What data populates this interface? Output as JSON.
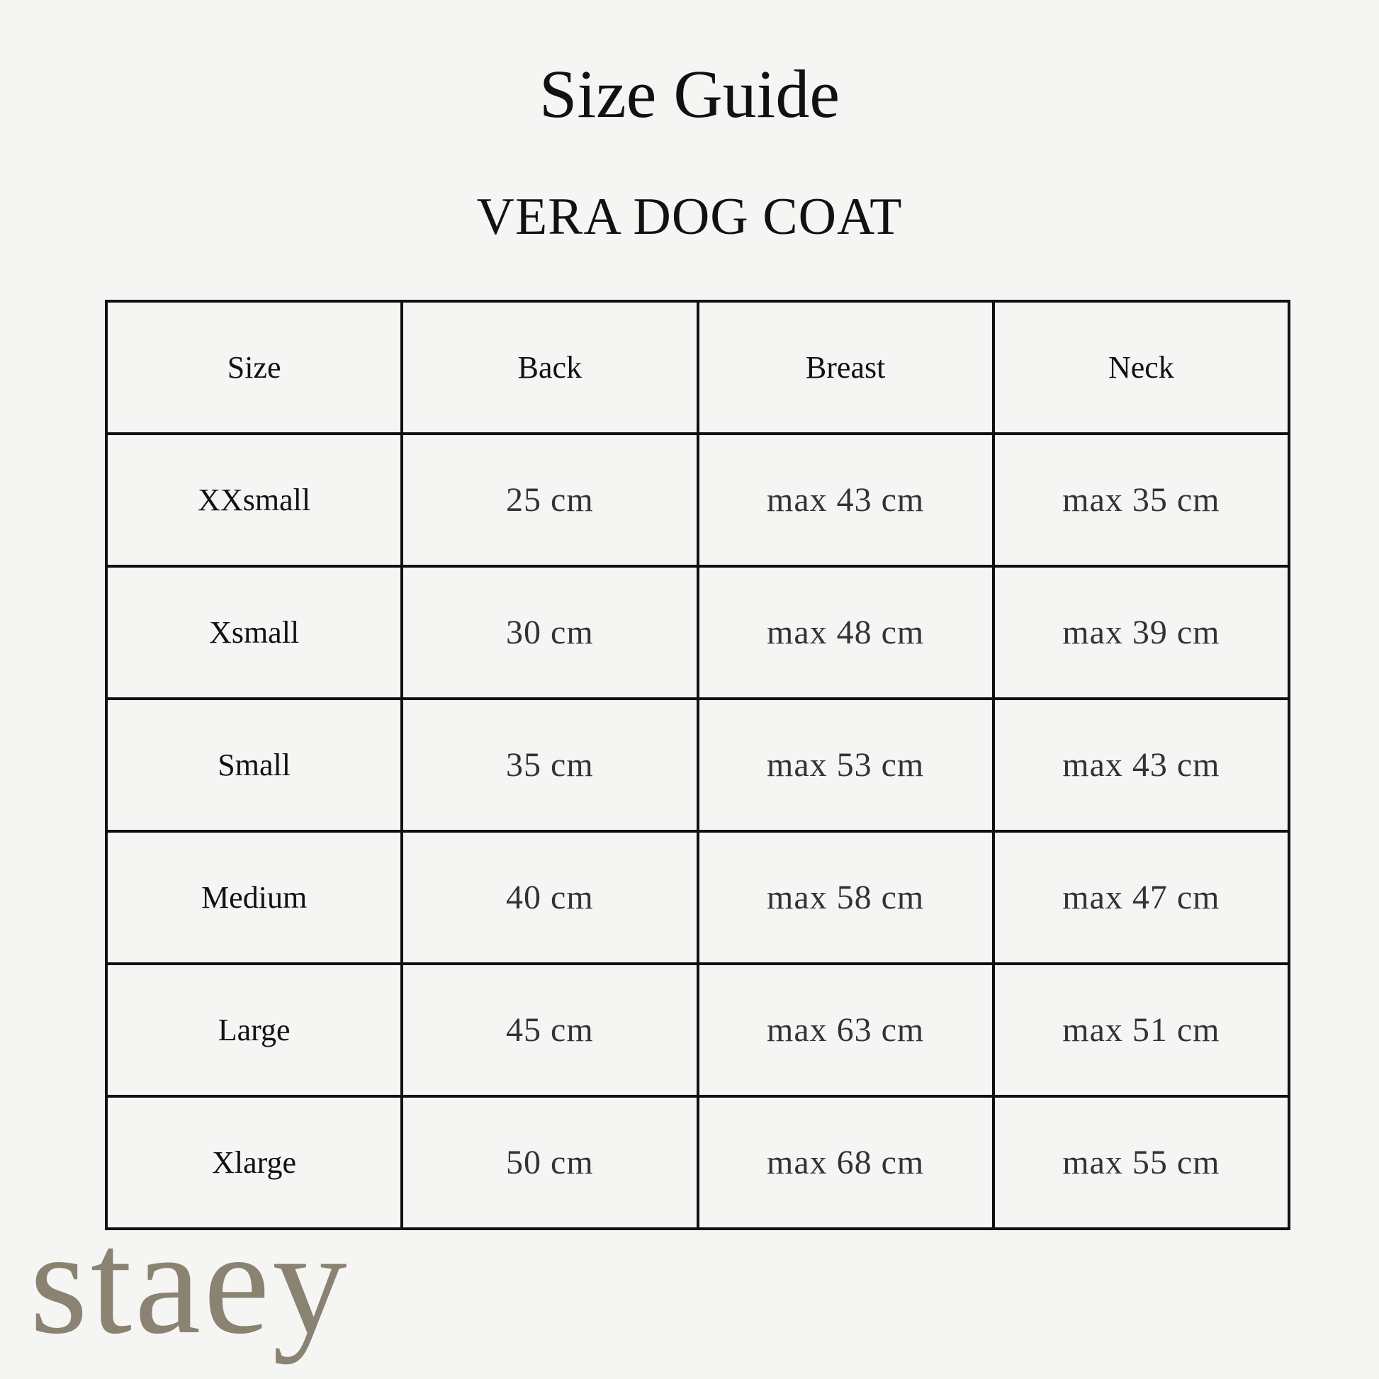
{
  "title": "Size Guide",
  "subtitle": "VERA DOG COAT",
  "table": {
    "headers": [
      "Size",
      "Back",
      "Breast",
      "Neck"
    ],
    "rows": [
      [
        "XXsmall",
        "25 cm",
        "max 43 cm",
        "max 35 cm"
      ],
      [
        "Xsmall",
        "30 cm",
        "max 48 cm",
        "max 39 cm"
      ],
      [
        "Small",
        "35 cm",
        "max 53 cm",
        "max 43 cm"
      ],
      [
        "Medium",
        "40 cm",
        "max 58 cm",
        "max 47 cm"
      ],
      [
        "Large",
        "45 cm",
        "max 63 cm",
        "max 51 cm"
      ],
      [
        "Xlarge",
        "50 cm",
        "max 68 cm",
        "max 55 cm"
      ]
    ]
  },
  "logo": "staey",
  "colors": {
    "background": "#f5f5f4",
    "logo": "#8a8372",
    "text": "#111111"
  }
}
